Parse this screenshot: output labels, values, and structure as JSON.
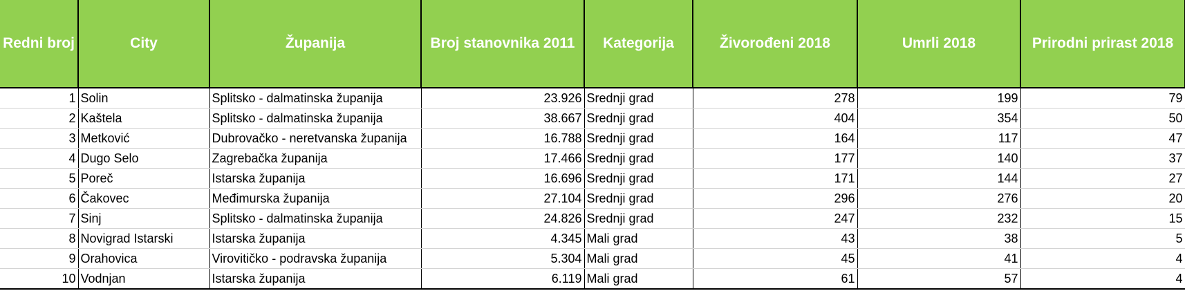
{
  "table": {
    "header": [
      "Redni broj",
      "City",
      "Županija",
      "Broj stanovnika 2011",
      "Kategorija",
      "Živorođeni 2018",
      "Umrli 2018",
      "Prirodni prirast 2018"
    ],
    "rows": [
      [
        1,
        "Solin",
        "Splitsko - dalmatinska županija",
        "23.926",
        "Srednji grad",
        278,
        199,
        79
      ],
      [
        2,
        "Kaštela",
        "Splitsko - dalmatinska županija",
        "38.667",
        "Srednji grad",
        404,
        354,
        50
      ],
      [
        3,
        "Metković",
        "Dubrovačko - neretvanska županija",
        "16.788",
        "Srednji grad",
        164,
        117,
        47
      ],
      [
        4,
        "Dugo Selo",
        "Zagrebačka županija",
        "17.466",
        "Srednji grad",
        177,
        140,
        37
      ],
      [
        5,
        "Poreč",
        "Istarska županija",
        "16.696",
        "Srednji grad",
        171,
        144,
        27
      ],
      [
        6,
        "Čakovec",
        "Međimurska županija",
        "27.104",
        "Srednji grad",
        296,
        276,
        20
      ],
      [
        7,
        "Sinj",
        "Splitsko - dalmatinska županija",
        "24.826",
        "Srednji grad",
        247,
        232,
        15
      ],
      [
        8,
        "Novigrad Istarski",
        "Istarska županija",
        "4.345",
        "Mali grad",
        43,
        38,
        5
      ],
      [
        9,
        "Orahovica",
        "Virovitičko - podravska županija",
        "5.304",
        "Mali grad",
        45,
        41,
        4
      ],
      [
        10,
        "Vodnjan",
        "Istarska županija",
        "6.119",
        "Mali grad",
        61,
        57,
        4
      ]
    ]
  }
}
